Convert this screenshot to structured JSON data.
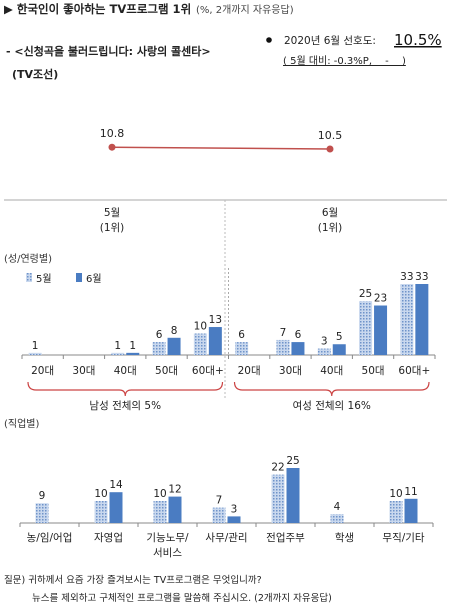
{
  "header": {
    "title": "▶ 한국인이 좋아하는 TV프로그램 1위",
    "title_note": "(%, 2개까지 자유응답)",
    "program_line1": "- <신청곡을 불러드립니다: 사랑의 콜센타>",
    "program_line2": "(TV조선)",
    "pref_label": "2020년 6월 선호도:",
    "pref_value": "10.5%",
    "pref_change": "( 5월 대비: -0.3%P,　 -　 )"
  },
  "colors": {
    "line": "#c0504d",
    "may_bar": "#a8bfe0",
    "june_bar": "#4a7cc2",
    "brace": "#cc4444",
    "axis": "#888888"
  },
  "chart_data": [
    {
      "type": "line",
      "categories": [
        "5월\n(1위)",
        "6월\n(1위)"
      ],
      "x_labels": [
        [
          "5월",
          "(1위)"
        ],
        [
          "6월",
          "(1위)"
        ]
      ],
      "values": [
        10.8,
        10.5
      ],
      "value_labels": [
        "10.8",
        "10.5"
      ]
    },
    {
      "type": "bar",
      "title": "(성/연령별)",
      "categories": [
        "20대",
        "30대",
        "40대",
        "50대",
        "60대+",
        "20대",
        "30대",
        "40대",
        "50대",
        "60대+"
      ],
      "series": [
        {
          "name": "5월",
          "values": [
            1,
            0,
            1,
            6,
            10,
            6,
            7,
            3,
            25,
            33
          ],
          "labels": [
            "1",
            "",
            "1",
            "6",
            "10",
            "6",
            "7",
            "3",
            "25",
            "33"
          ]
        },
        {
          "name": "6월",
          "values": [
            0,
            0,
            1,
            8,
            13,
            0,
            6,
            5,
            23,
            33
          ],
          "labels": [
            "",
            "",
            "1",
            "8",
            "13",
            "",
            "6",
            "5",
            "23",
            "33"
          ]
        }
      ],
      "groups": [
        {
          "label": "남성 전체의 5%",
          "from": 0,
          "to": 4
        },
        {
          "label": "여성 전체의 16%",
          "from": 5,
          "to": 9
        }
      ],
      "ylim": [
        0,
        35
      ]
    },
    {
      "type": "bar",
      "title": "(직업별)",
      "categories": [
        "농/임/어업",
        "자영업",
        "기능노무/\n서비스",
        "사무/관리",
        "전업주부",
        "학생",
        "무직/기타"
      ],
      "x_labels": [
        [
          "농/임/어업"
        ],
        [
          "자영업"
        ],
        [
          "기능노무/",
          "서비스"
        ],
        [
          "사무/관리"
        ],
        [
          "전업주부"
        ],
        [
          "학생"
        ],
        [
          "무직/기타"
        ]
      ],
      "series": [
        {
          "name": "5월",
          "values": [
            9,
            10,
            10,
            7,
            22,
            4,
            10
          ],
          "labels": [
            "9",
            "10",
            "10",
            "7",
            "22",
            "4",
            "10"
          ]
        },
        {
          "name": "6월",
          "values": [
            0,
            14,
            12,
            3,
            25,
            0,
            11
          ],
          "labels": [
            "",
            "14",
            "12",
            "3",
            "25",
            "",
            "11"
          ]
        }
      ],
      "ylim": [
        0,
        35
      ]
    }
  ],
  "footer": {
    "line1": "질문) 귀하께서 요즘 가장 즐겨보시는 TV프로그램은 무엇입니까?",
    "line2": "뉴스를 제외하고 구체적인 프로그램을 말씀해 주십시오. (2개까지 자유응답)"
  }
}
